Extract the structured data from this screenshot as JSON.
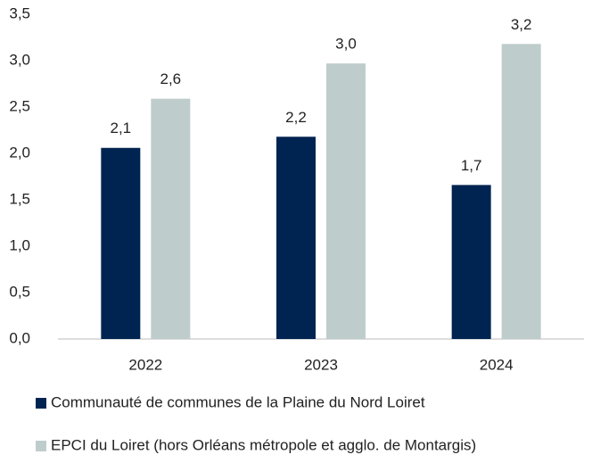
{
  "chart_data": {
    "type": "bar",
    "categories": [
      "2022",
      "2023",
      "2024"
    ],
    "series": [
      {
        "name": "Communauté de communes de la Plaine du Nord Loiret",
        "color": "#002451",
        "values": [
          2.06,
          2.18,
          1.66
        ],
        "value_labels": [
          "2,1",
          "2,2",
          "1,7"
        ]
      },
      {
        "name": "EPCI du Loiret (hors Orléans métropole et agglo. de Montargis)",
        "color": "#bfcccc",
        "values": [
          2.59,
          2.97,
          3.18
        ],
        "value_labels": [
          "2,6",
          "3,0",
          "3,2"
        ]
      }
    ],
    "ylim": [
      0,
      3.5
    ],
    "yticks": [
      {
        "value": 0,
        "label": "0,0"
      },
      {
        "value": 0.5,
        "label": "0,5"
      },
      {
        "value": 1,
        "label": "1,0"
      },
      {
        "value": 1.5,
        "label": "1,5"
      },
      {
        "value": 2,
        "label": "2,0"
      },
      {
        "value": 2.5,
        "label": "2,5"
      },
      {
        "value": 3,
        "label": "3,0"
      },
      {
        "value": 3.5,
        "label": "3,5"
      }
    ],
    "grid": false,
    "legend": "bottom"
  }
}
